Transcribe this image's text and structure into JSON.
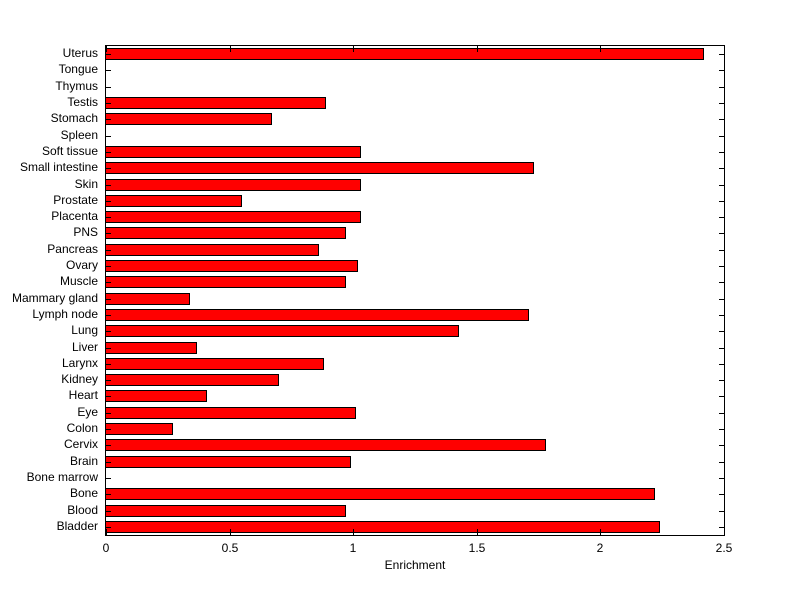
{
  "chart_data": {
    "type": "bar",
    "orientation": "horizontal",
    "title": "",
    "xlabel": "Enrichment",
    "ylabel": "",
    "xlim": [
      0,
      2.5
    ],
    "x_tick_values": [
      0,
      0.5,
      1,
      1.5,
      2,
      2.5
    ],
    "x_tick_labels": [
      "0",
      "0.5",
      "1",
      "1.5",
      "2",
      "2.5"
    ],
    "legend": null,
    "grid": false,
    "bar_color": "#ff0000",
    "bar_edge_color": "#000000",
    "background_color": "#ffffff",
    "axis_color": "#000000",
    "categories_top_to_bottom": [
      "Uterus",
      "Tongue",
      "Thymus",
      "Testis",
      "Stomach",
      "Spleen",
      "Soft tissue",
      "Small intestine",
      "Skin",
      "Prostate",
      "Placenta",
      "PNS",
      "Pancreas",
      "Ovary",
      "Muscle",
      "Mammary gland",
      "Lymph node",
      "Lung",
      "Liver",
      "Larynx",
      "Kidney",
      "Heart",
      "Eye",
      "Colon",
      "Cervix",
      "Brain",
      "Bone marrow",
      "Bone",
      "Blood",
      "Bladder"
    ],
    "values": [
      2.42,
      0,
      0,
      0.89,
      0.67,
      0,
      1.03,
      1.73,
      1.03,
      0.55,
      1.03,
      0.97,
      0.86,
      1.02,
      0.97,
      0.34,
      1.71,
      1.43,
      0.37,
      0.88,
      0.7,
      0.41,
      1.01,
      0.27,
      1.78,
      0.99,
      0,
      2.22,
      0.97,
      2.24
    ]
  }
}
